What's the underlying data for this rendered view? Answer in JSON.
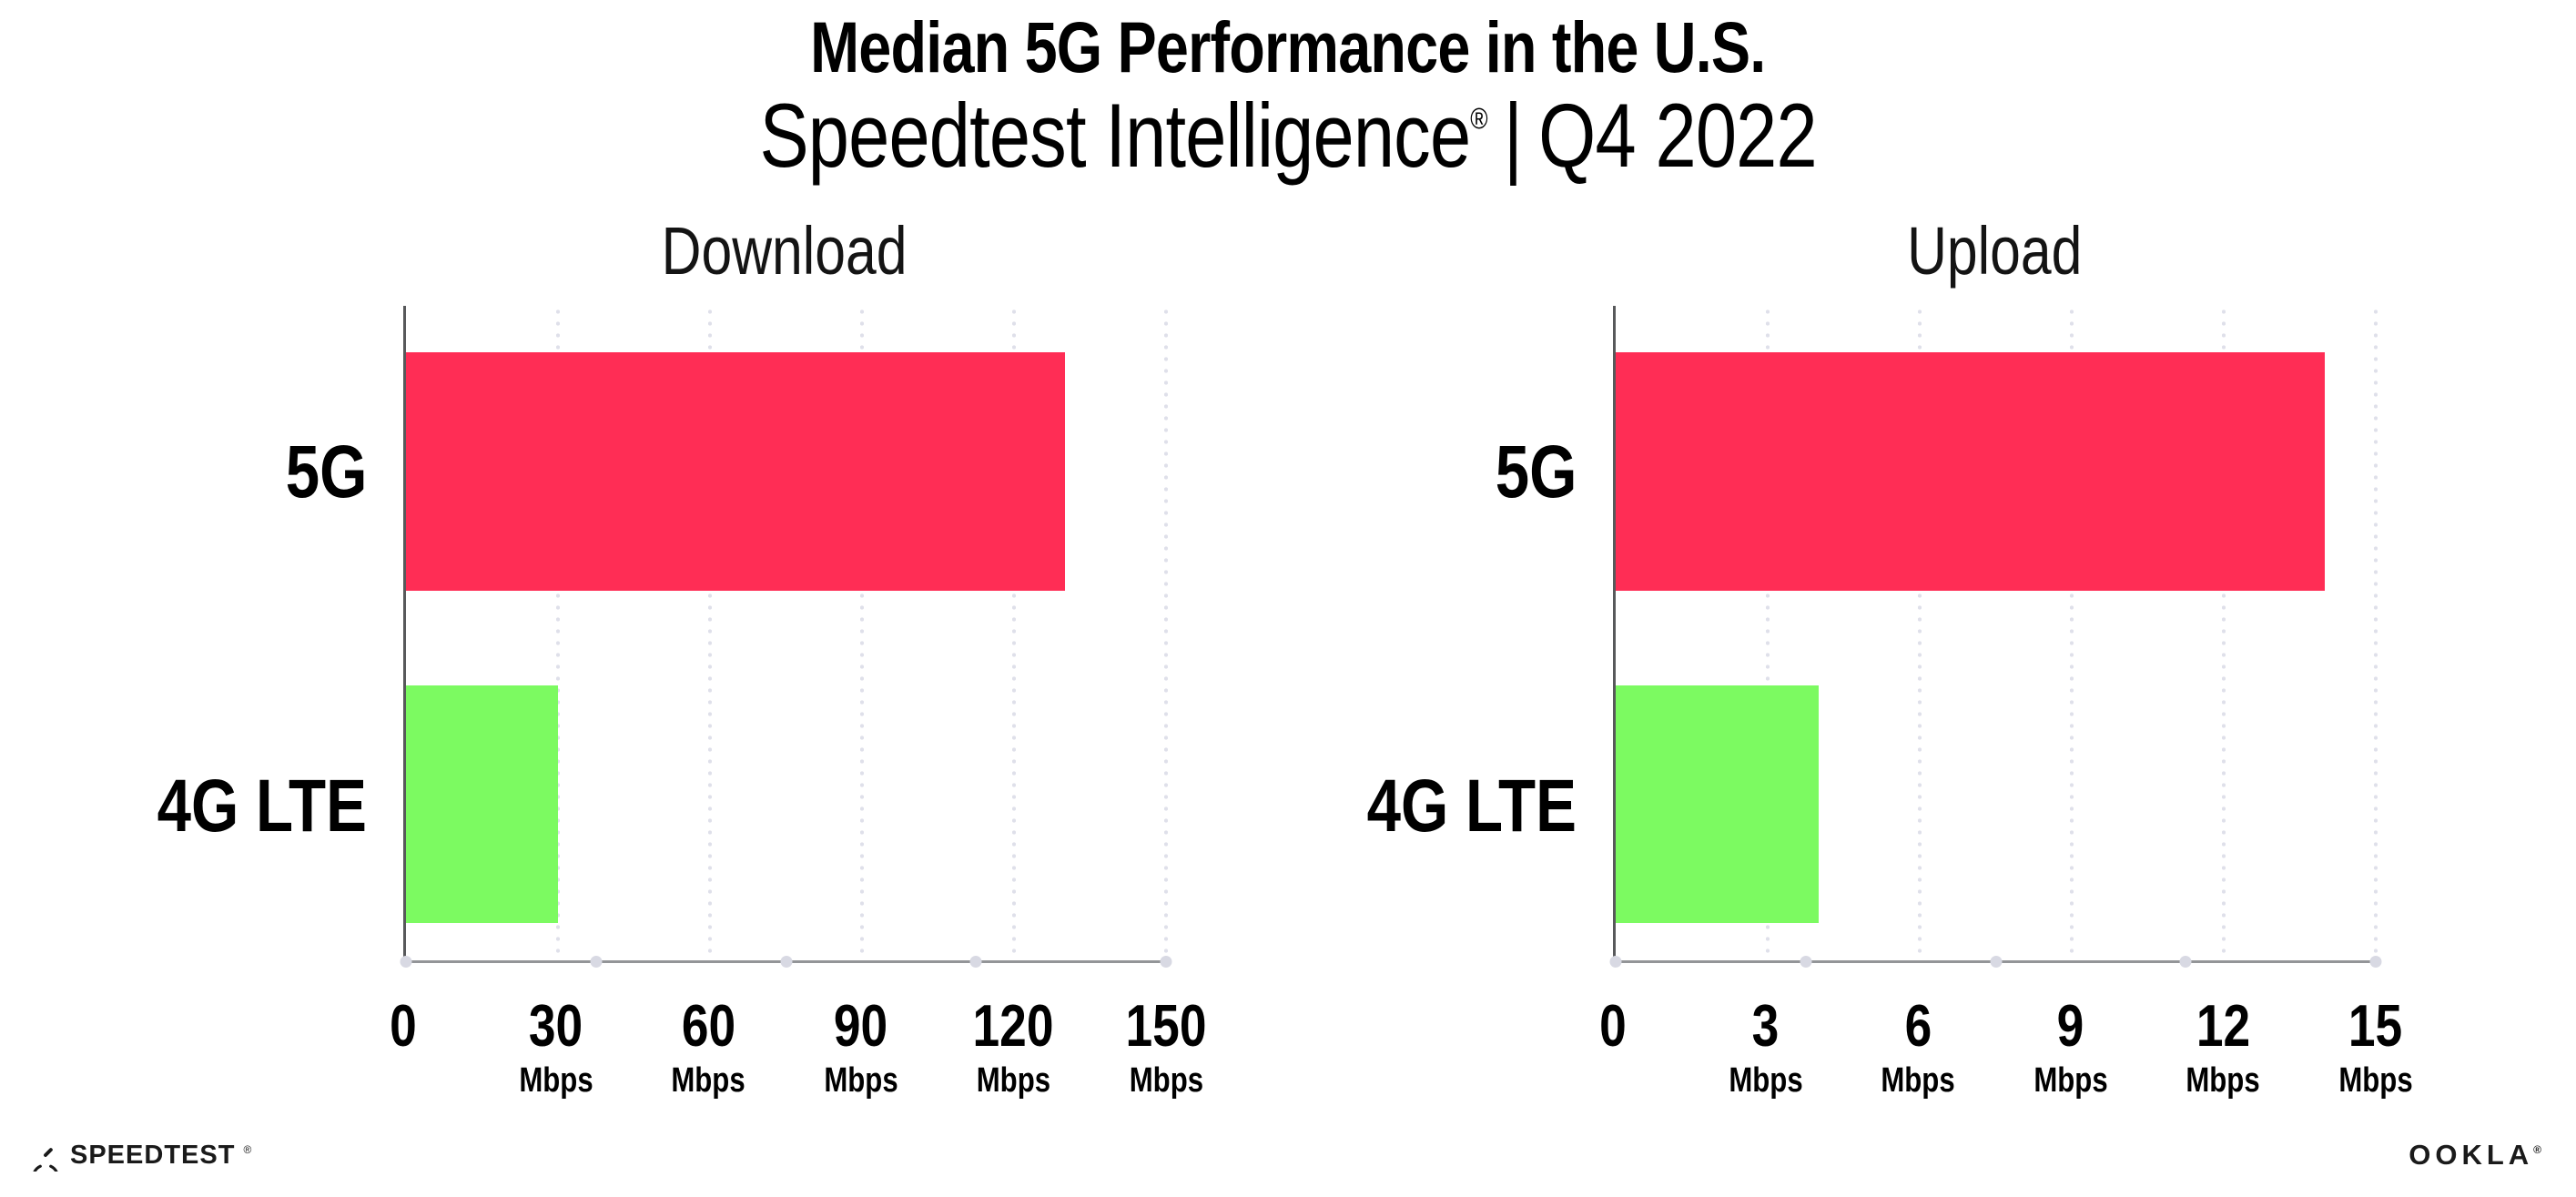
{
  "header": {
    "title": "Median 5G Performance in the U.S.",
    "subtitle_brand": "Speedtest Intelligence",
    "subtitle_registered": "®",
    "subtitle_separator": "|",
    "subtitle_period": "Q4 2022"
  },
  "colors": {
    "bar_5g": "#FF2D55",
    "bar_4g_lte": "#7CFA61",
    "gridline": "#DFE0EA",
    "y_axis": "#58595B",
    "x_axis": "#939598",
    "text": "#000000",
    "background": "#FFFFFF"
  },
  "chart_data": [
    {
      "type": "bar",
      "orientation": "horizontal",
      "title": "Download",
      "categories": [
        "5G",
        "4G LTE"
      ],
      "values": [
        130,
        30
      ],
      "unit": "Mbps",
      "xlim": [
        0,
        150
      ],
      "xticks": [
        {
          "label": "0",
          "unit": ""
        },
        {
          "label": "30",
          "unit": "Mbps"
        },
        {
          "label": "60",
          "unit": "Mbps"
        },
        {
          "label": "90",
          "unit": "Mbps"
        },
        {
          "label": "120",
          "unit": "Mbps"
        },
        {
          "label": "150",
          "unit": "Mbps"
        }
      ],
      "bar_colors": [
        "#FF2D55",
        "#7CFA61"
      ],
      "grid": "vertical-dotted",
      "legend": "none"
    },
    {
      "type": "bar",
      "orientation": "horizontal",
      "title": "Upload",
      "categories": [
        "5G",
        "4G LTE"
      ],
      "values": [
        14,
        4
      ],
      "unit": "Mbps",
      "xlim": [
        0,
        15
      ],
      "xticks": [
        {
          "label": "0",
          "unit": ""
        },
        {
          "label": "3",
          "unit": "Mbps"
        },
        {
          "label": "6",
          "unit": "Mbps"
        },
        {
          "label": "9",
          "unit": "Mbps"
        },
        {
          "label": "12",
          "unit": "Mbps"
        },
        {
          "label": "15",
          "unit": "Mbps"
        }
      ],
      "bar_colors": [
        "#FF2D55",
        "#7CFA61"
      ],
      "grid": "vertical-dotted",
      "legend": "none"
    }
  ],
  "footer": {
    "speedtest_label": "SPEEDTEST",
    "speedtest_mark": "®",
    "ookla_label": "OOKLA",
    "ookla_mark": "®"
  }
}
